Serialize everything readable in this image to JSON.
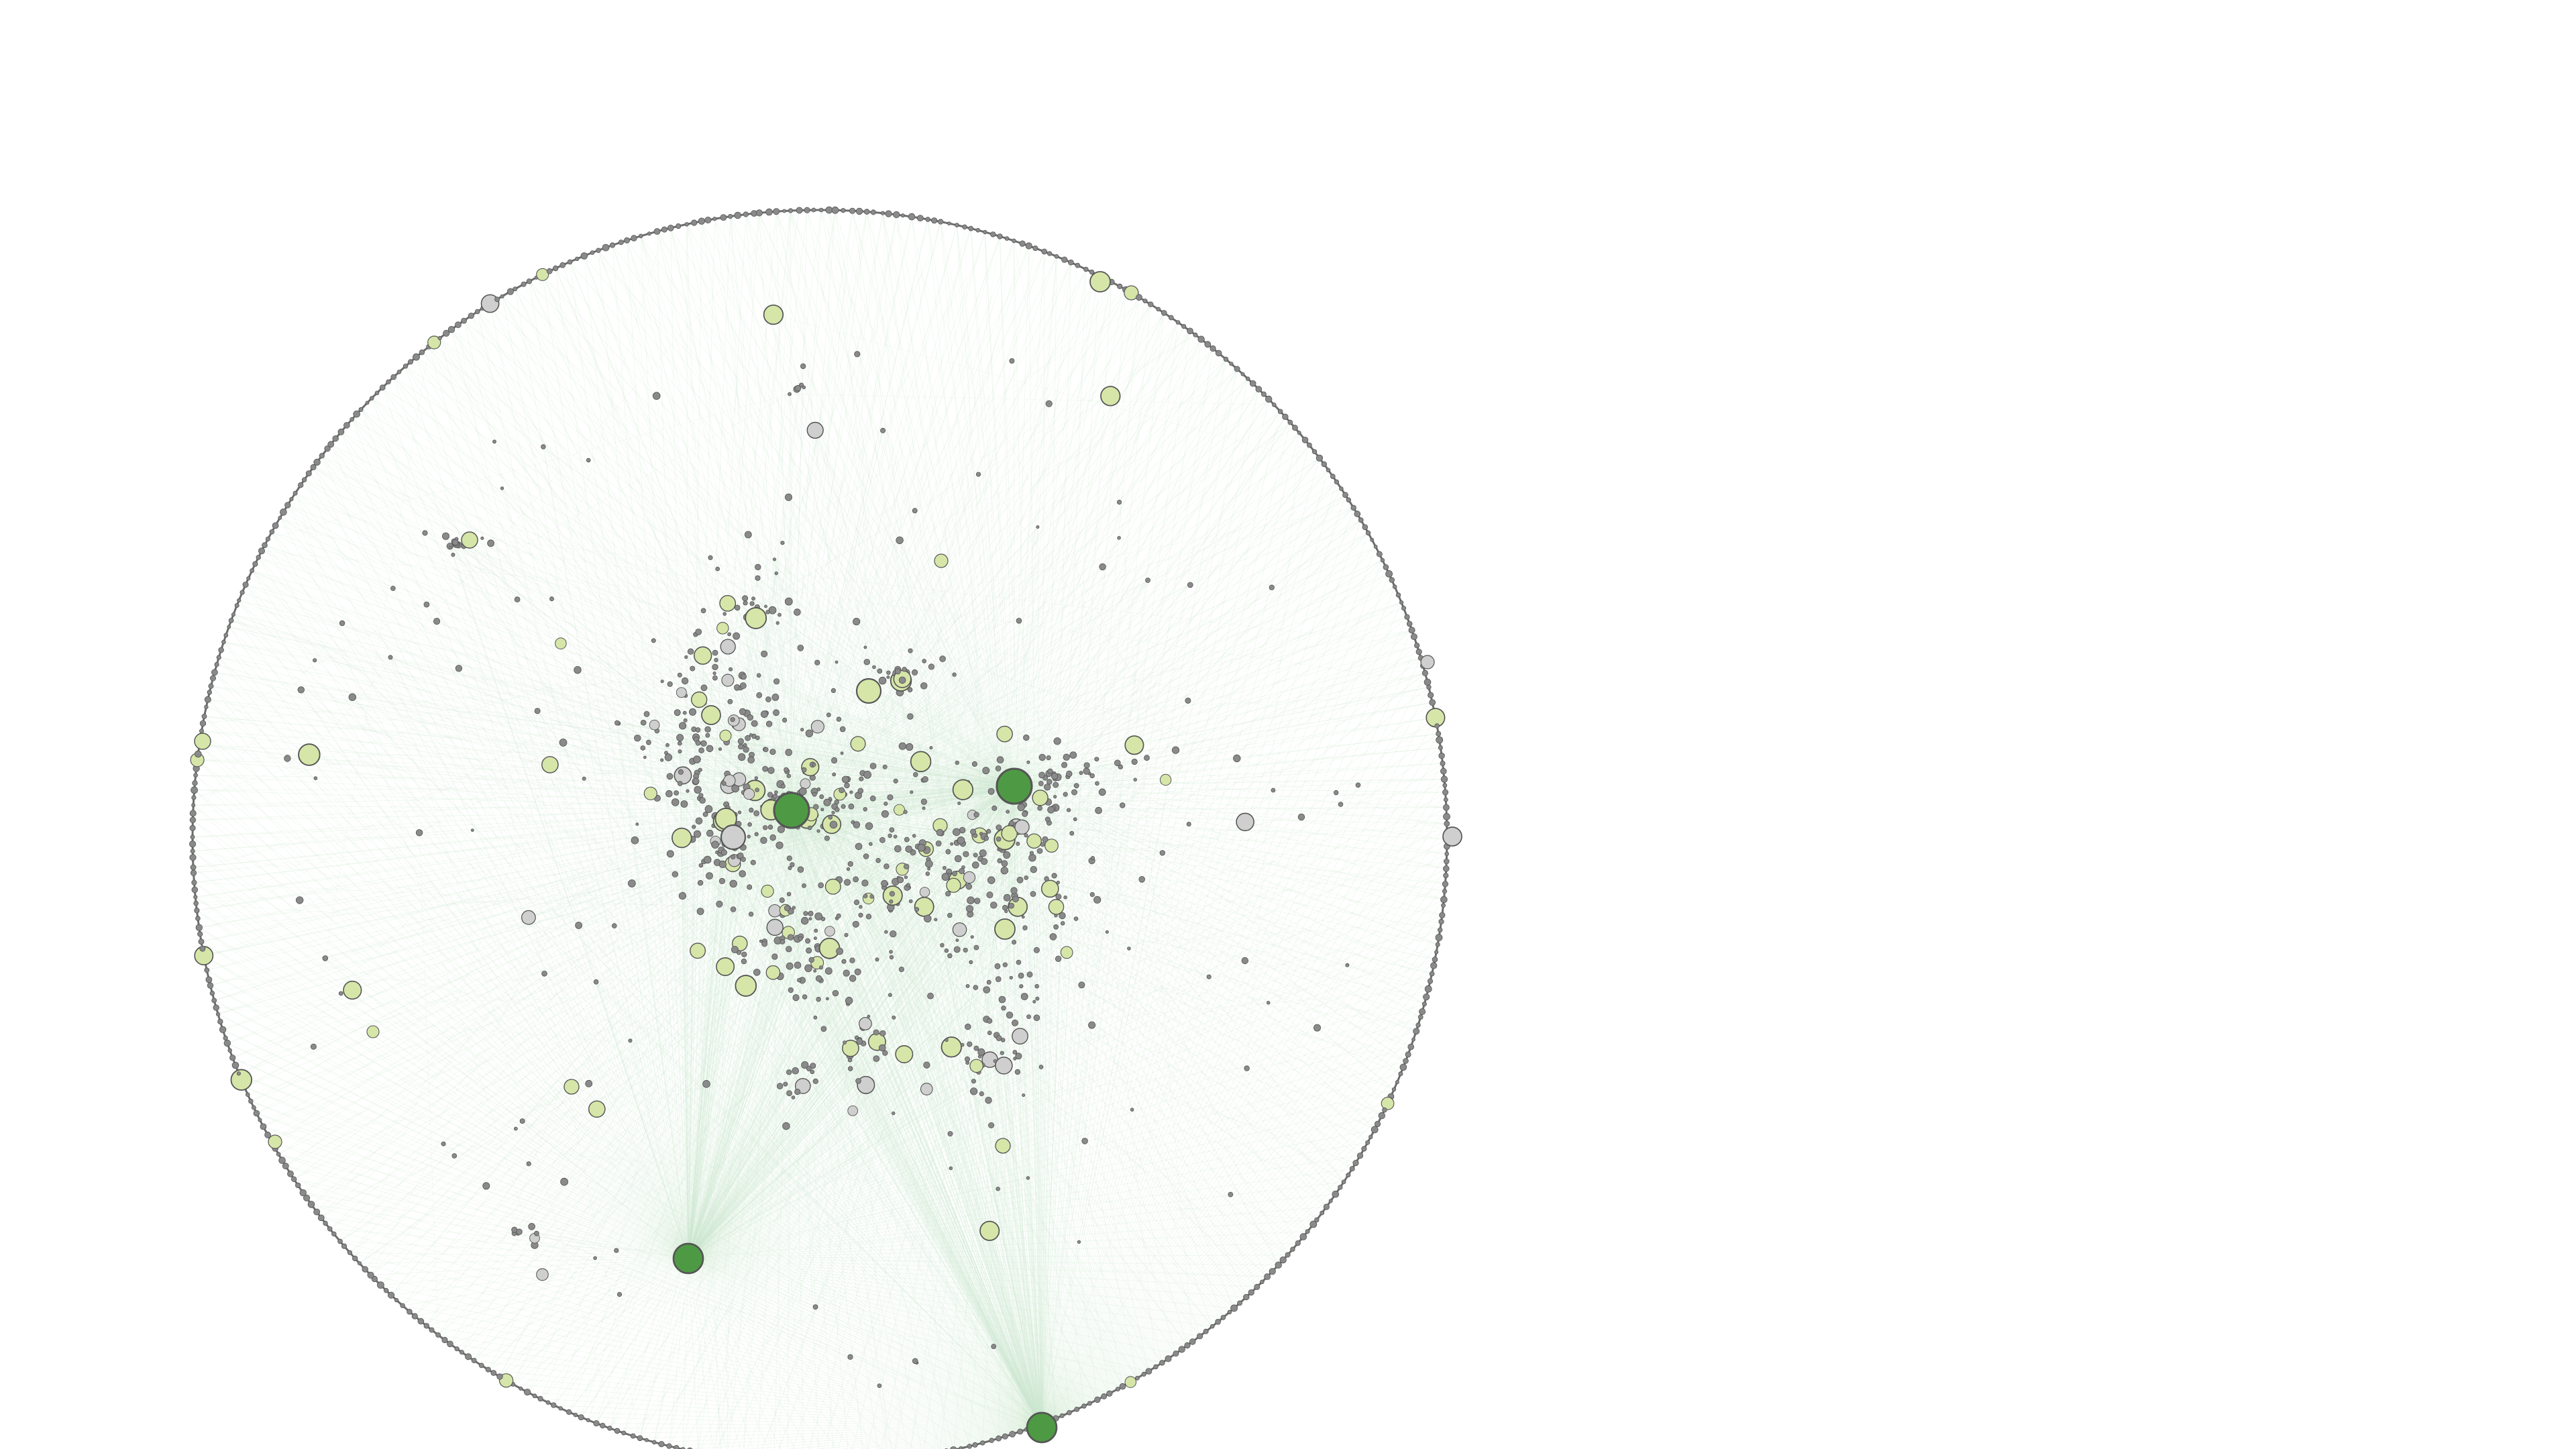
{
  "graph": {
    "layout": "radial",
    "background": "#ffffff",
    "edge_color": "#cfe8d2",
    "node_stroke": "#555555",
    "palette": {
      "hub": "#4e9a44",
      "light_green": "#d6e6a8",
      "gray": "#cfcfcf",
      "dark_gray": "#8a8a8a"
    },
    "hubs": 4,
    "dense_ring": true
  }
}
